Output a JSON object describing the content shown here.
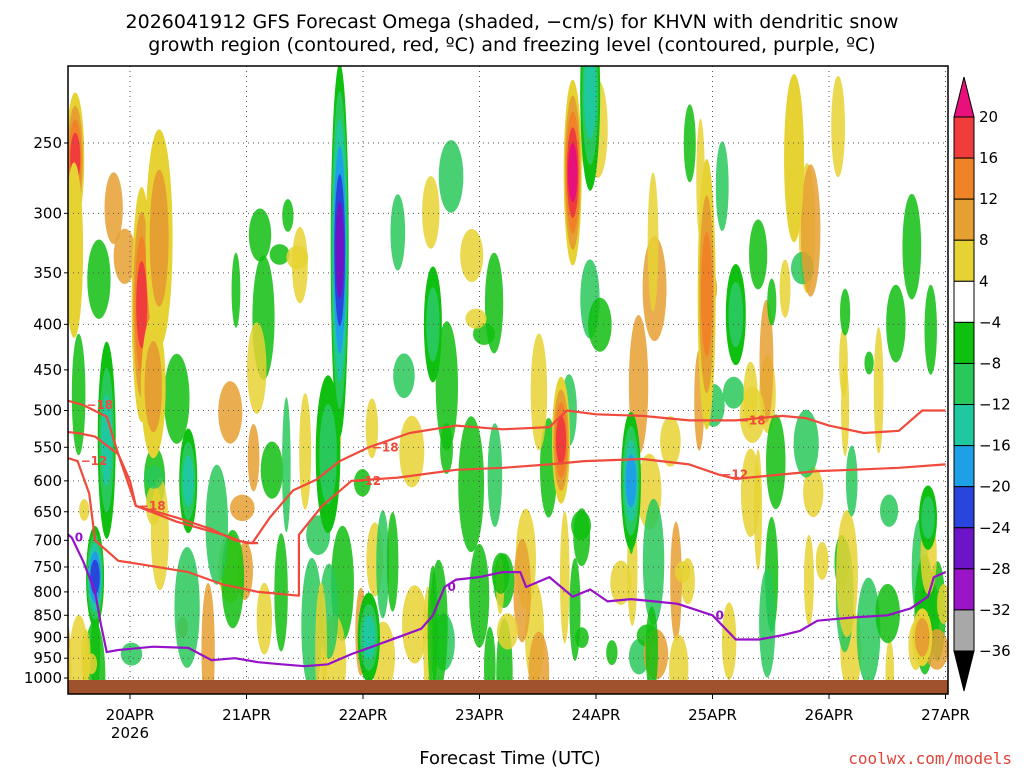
{
  "title": {
    "line1": "2026041912 GFS Forecast Omega (shaded, −cm/s) for KHVN with dendritic snow",
    "line2": "growth region (contoured, red, ºC) and freezing level (contoured, purple, ºC)"
  },
  "credit": "coolwx.com/models",
  "colors": {
    "dgz": "#f04a3c",
    "freezing": "#9612c8",
    "ground": "#a0522d",
    "grid": "#555555"
  },
  "chart_data": {
    "type": "heatmap",
    "xlabel": "Forecast Time (UTC)",
    "ylabel": "",
    "x_ticks": [
      "20APR",
      "21APR",
      "22APR",
      "23APR",
      "24APR",
      "25APR",
      "26APR",
      "27APR"
    ],
    "x_year_label": "2026",
    "xlim": [
      -0.64,
      7.0
    ],
    "y_ticks": [
      250,
      300,
      350,
      400,
      450,
      500,
      550,
      600,
      650,
      700,
      750,
      800,
      850,
      900,
      950,
      1000
    ],
    "ylim": [
      1020,
      200
    ],
    "y_scale": "log-pressure",
    "colorbar": {
      "levels": [
        20,
        16,
        12,
        8,
        4,
        -4,
        -8,
        -12,
        -16,
        -20,
        -24,
        -28,
        -32,
        -36
      ],
      "colors": [
        "#e8107a",
        "#f03c3c",
        "#f08228",
        "#e6a032",
        "#e6d232",
        "#ffffff",
        "#10c010",
        "#28c85a",
        "#20c8a0",
        "#1ea0e6",
        "#2846dc",
        "#6e14c8",
        "#9a14c8",
        "#a8a8a8",
        "#000000"
      ]
    },
    "omega_cells": [
      {
        "day": -0.47,
        "p": 260,
        "dd": 0.03,
        "dp": 45,
        "v": 16
      },
      {
        "day": -0.48,
        "p": 330,
        "dd": 0.03,
        "dp": 80,
        "v": 6
      },
      {
        "day": -0.2,
        "p": 540,
        "dd": 0.04,
        "dp": 150,
        "v": -12
      },
      {
        "day": -0.3,
        "p": 770,
        "dd": 0.05,
        "dp": 100,
        "v": -20
      },
      {
        "day": 0.1,
        "p": 380,
        "dd": 0.06,
        "dp": 130,
        "v": 18
      },
      {
        "day": 0.25,
        "p": 320,
        "dd": 0.09,
        "dp": 100,
        "v": 10
      },
      {
        "day": 0.2,
        "p": 470,
        "dd": 0.08,
        "dp": 90,
        "v": 8
      },
      {
        "day": 0.5,
        "p": 600,
        "dd": 0.04,
        "dp": 80,
        "v": -12
      },
      {
        "day": 1.8,
        "p": 330,
        "dd": 0.05,
        "dp": 200,
        "v": -24
      },
      {
        "day": 1.7,
        "p": 560,
        "dd": 0.08,
        "dp": 120,
        "v": -10
      },
      {
        "day": 2.05,
        "p": 900,
        "dd": 0.07,
        "dp": 100,
        "v": -12
      },
      {
        "day": 2.6,
        "p": 400,
        "dd": 0.04,
        "dp": 60,
        "v": -8
      },
      {
        "day": 3.8,
        "p": 270,
        "dd": 0.05,
        "dp": 70,
        "v": 20
      },
      {
        "day": 3.95,
        "p": 220,
        "dd": 0.06,
        "dp": 60,
        "v": -12
      },
      {
        "day": 3.7,
        "p": 540,
        "dd": 0.04,
        "dp": 90,
        "v": 18
      },
      {
        "day": 4.3,
        "p": 600,
        "dd": 0.06,
        "dp": 110,
        "v": -16
      },
      {
        "day": 4.95,
        "p": 370,
        "dd": 0.03,
        "dp": 150,
        "v": 14
      },
      {
        "day": 5.2,
        "p": 390,
        "dd": 0.06,
        "dp": 50,
        "v": -10
      },
      {
        "day": 5.7,
        "p": 260,
        "dd": 0.06,
        "dp": 60,
        "v": 6
      },
      {
        "day": 6.85,
        "p": 660,
        "dd": 0.05,
        "dp": 50,
        "v": -8
      },
      {
        "day": 6.8,
        "p": 900,
        "dd": 0.06,
        "dp": 60,
        "v": 10
      }
    ],
    "dgz_minus18": [
      {
        "label": "−18",
        "points": [
          [
            -0.64,
            483
          ],
          [
            -0.4,
            493
          ],
          [
            -0.2,
            508
          ],
          [
            -0.1,
            560
          ],
          [
            0.05,
            640
          ],
          [
            0.4,
            660
          ],
          [
            0.7,
            680
          ],
          [
            0.9,
            700
          ],
          [
            1.05,
            705
          ],
          [
            1.2,
            660
          ],
          [
            1.4,
            615
          ],
          [
            1.6,
            598
          ],
          [
            1.8,
            570
          ],
          [
            2.05,
            550
          ],
          [
            2.4,
            530
          ],
          [
            2.8,
            520
          ],
          [
            3.2,
            525
          ],
          [
            3.6,
            522
          ],
          [
            3.75,
            500
          ],
          [
            4.0,
            505
          ],
          [
            4.4,
            507
          ],
          [
            4.8,
            513
          ],
          [
            5.2,
            513
          ],
          [
            5.6,
            507
          ],
          [
            5.8,
            510
          ],
          [
            6.0,
            520
          ],
          [
            6.3,
            530
          ],
          [
            6.6,
            527
          ],
          [
            6.8,
            500
          ],
          [
            7.0,
            500
          ]
        ]
      },
      {
        "label": "−18",
        "points": [
          [
            -0.64,
            527
          ],
          [
            -0.45,
            530
          ],
          [
            -0.3,
            535
          ],
          [
            -0.1,
            560
          ],
          [
            0.0,
            600
          ],
          [
            0.05,
            640
          ],
          [
            0.4,
            667
          ],
          [
            0.8,
            690
          ],
          [
            1.0,
            705
          ],
          [
            1.1,
            705
          ]
        ]
      }
    ],
    "dgz_minus12": [
      {
        "label": "−12",
        "points": [
          [
            -0.64,
            560
          ],
          [
            -0.45,
            570
          ],
          [
            -0.35,
            620
          ],
          [
            -0.3,
            700
          ],
          [
            -0.1,
            738
          ],
          [
            0.1,
            745
          ],
          [
            0.5,
            760
          ],
          [
            0.8,
            785
          ],
          [
            1.1,
            800
          ],
          [
            1.45,
            808
          ],
          [
            1.45,
            690
          ],
          [
            1.65,
            640
          ],
          [
            1.9,
            600
          ],
          [
            2.3,
            595
          ],
          [
            2.8,
            583
          ],
          [
            3.2,
            580
          ],
          [
            3.6,
            575
          ],
          [
            3.9,
            570
          ],
          [
            4.4,
            567
          ],
          [
            4.8,
            575
          ],
          [
            5.05,
            590
          ],
          [
            5.2,
            597
          ],
          [
            5.6,
            590
          ],
          [
            5.9,
            585
          ],
          [
            6.2,
            583
          ],
          [
            6.6,
            580
          ],
          [
            7.0,
            575
          ]
        ]
      }
    ],
    "freezing_level": [
      {
        "label": "0",
        "points": [
          [
            -0.64,
            672
          ],
          [
            -0.5,
            695
          ],
          [
            -0.4,
            740
          ],
          [
            -0.3,
            800
          ],
          [
            -0.25,
            870
          ],
          [
            -0.2,
            935
          ],
          [
            -0.1,
            930
          ],
          [
            0.2,
            922
          ],
          [
            0.5,
            925
          ],
          [
            0.7,
            955
          ],
          [
            0.9,
            950
          ],
          [
            1.1,
            960
          ],
          [
            1.3,
            965
          ],
          [
            1.5,
            970
          ],
          [
            1.7,
            965
          ],
          [
            1.9,
            940
          ],
          [
            2.1,
            920
          ],
          [
            2.3,
            900
          ],
          [
            2.5,
            880
          ],
          [
            2.6,
            850
          ],
          [
            2.7,
            790
          ],
          [
            2.8,
            775
          ],
          [
            3.0,
            770
          ],
          [
            3.2,
            760
          ],
          [
            3.35,
            760
          ],
          [
            3.4,
            790
          ],
          [
            3.6,
            770
          ],
          [
            3.8,
            810
          ],
          [
            3.95,
            795
          ],
          [
            4.1,
            820
          ],
          [
            4.3,
            815
          ],
          [
            4.5,
            820
          ],
          [
            4.7,
            825
          ],
          [
            5.0,
            850
          ],
          [
            5.2,
            905
          ],
          [
            5.4,
            905
          ],
          [
            5.6,
            895
          ],
          [
            5.75,
            885
          ],
          [
            5.9,
            862
          ],
          [
            6.2,
            855
          ],
          [
            6.5,
            850
          ],
          [
            6.7,
            835
          ],
          [
            6.85,
            810
          ],
          [
            6.9,
            770
          ],
          [
            7.0,
            760
          ]
        ]
      }
    ]
  }
}
